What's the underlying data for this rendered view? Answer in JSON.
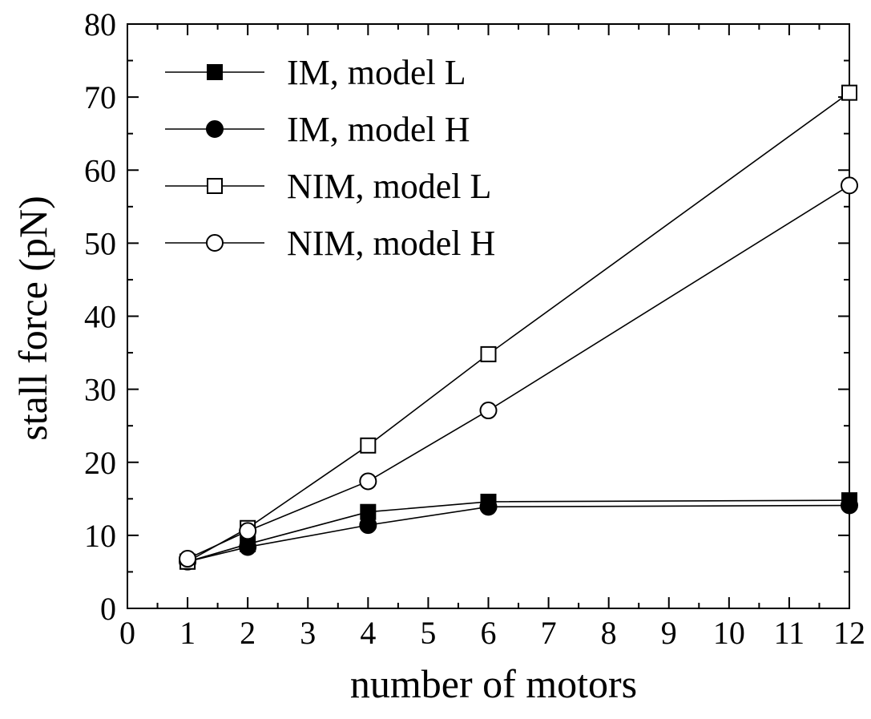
{
  "chart_data": {
    "type": "line",
    "xlabel": "number of motors",
    "ylabel": "stall force (pN)",
    "xlim": [
      0,
      12
    ],
    "ylim": [
      0,
      80
    ],
    "x_ticks": [
      "0",
      "1",
      "2",
      "3",
      "4",
      "5",
      "6",
      "7",
      "8",
      "9",
      "10",
      "11",
      "12"
    ],
    "y_ticks": [
      "0",
      "10",
      "20",
      "30",
      "40",
      "50",
      "60",
      "70",
      "80"
    ],
    "grid": false,
    "legend_position": "top-left",
    "series": [
      {
        "name": "IM, model L",
        "marker": "square-filled",
        "points": [
          {
            "x_label": "1",
            "y": 6.4
          },
          {
            "x_label": "2",
            "y": 8.8
          },
          {
            "x_label": "4",
            "y": 13.2
          },
          {
            "x_label": "6",
            "y": 14.6
          },
          {
            "x_label": "12",
            "y": 14.8
          }
        ]
      },
      {
        "name": "IM, model H",
        "marker": "circle-filled",
        "points": [
          {
            "x_label": "1",
            "y": 6.4
          },
          {
            "x_label": "2",
            "y": 8.4
          },
          {
            "x_label": "4",
            "y": 11.4
          },
          {
            "x_label": "6",
            "y": 13.9
          },
          {
            "x_label": "12",
            "y": 14.1
          }
        ]
      },
      {
        "name": "NIM, model L",
        "marker": "square-open",
        "points": [
          {
            "x_label": "1",
            "y": 6.4
          },
          {
            "x_label": "2",
            "y": 11.0
          },
          {
            "x_label": "4",
            "y": 22.3
          },
          {
            "x_label": "6",
            "y": 34.8
          },
          {
            "x_label": "12",
            "y": 70.6
          }
        ]
      },
      {
        "name": "NIM, model H",
        "marker": "circle-open",
        "points": [
          {
            "x_label": "1",
            "y": 6.8
          },
          {
            "x_label": "2",
            "y": 10.6
          },
          {
            "x_label": "4",
            "y": 17.4
          },
          {
            "x_label": "6",
            "y": 27.1
          },
          {
            "x_label": "12",
            "y": 57.9
          }
        ]
      }
    ]
  }
}
